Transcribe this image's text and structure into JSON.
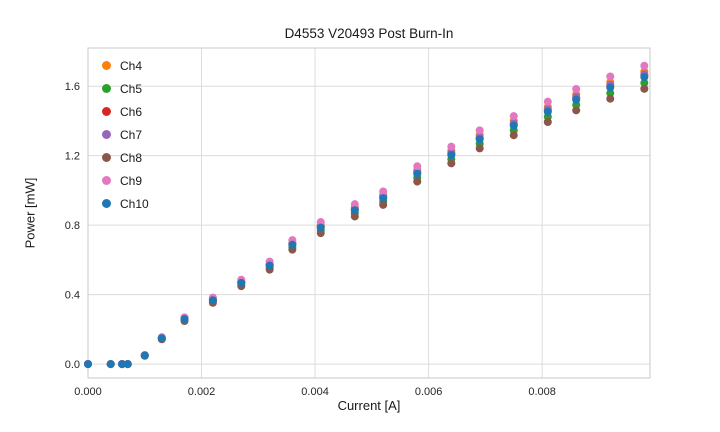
{
  "chart_data": {
    "type": "scatter",
    "title": "D4553 V20493 Post Burn-In",
    "xlabel": "Current [A]",
    "ylabel": "Power [mW]",
    "xlim": [
      0,
      0.0099
    ],
    "ylim": [
      -0.08,
      1.82
    ],
    "xticks": [
      0.0,
      0.002,
      0.004,
      0.006,
      0.008
    ],
    "xtick_labels": [
      "0.000",
      "0.002",
      "0.004",
      "0.006",
      "0.008"
    ],
    "yticks": [
      0.0,
      0.4,
      0.8,
      1.2,
      1.6
    ],
    "ytick_labels": [
      "0.0",
      "0.4",
      "0.8",
      "1.2",
      "1.6"
    ],
    "grid": true,
    "legend_position": "upper left",
    "x": [
      0.0,
      0.0004,
      0.0006,
      0.0007,
      0.001,
      0.0013,
      0.0017,
      0.0022,
      0.0027,
      0.0032,
      0.0036,
      0.0041,
      0.0047,
      0.0052,
      0.0058,
      0.0064,
      0.0069,
      0.0075,
      0.0081,
      0.0086,
      0.0092,
      0.0098
    ],
    "series": [
      {
        "name": "Ch4",
        "color": "#ff7f0e",
        "values": [
          0,
          0,
          0,
          0,
          0.051,
          0.152,
          0.264,
          0.376,
          0.477,
          0.579,
          0.7,
          0.802,
          0.903,
          0.974,
          1.117,
          1.228,
          1.32,
          1.401,
          1.482,
          1.553,
          1.624,
          1.685
        ]
      },
      {
        "name": "Ch5",
        "color": "#2ca02c",
        "values": [
          0,
          0,
          0,
          0,
          0.049,
          0.146,
          0.254,
          0.361,
          0.458,
          0.556,
          0.673,
          0.77,
          0.868,
          0.936,
          1.073,
          1.18,
          1.268,
          1.346,
          1.424,
          1.492,
          1.56,
          1.619
        ]
      },
      {
        "name": "Ch6",
        "color": "#d62728",
        "values": [
          0,
          0,
          0,
          0,
          0.05,
          0.15,
          0.26,
          0.37,
          0.47,
          0.57,
          0.69,
          0.79,
          0.89,
          0.96,
          1.1,
          1.21,
          1.3,
          1.38,
          1.46,
          1.53,
          1.6,
          1.66
        ]
      },
      {
        "name": "Ch7",
        "color": "#9467bd",
        "values": [
          0,
          0,
          0,
          0,
          0.05,
          0.151,
          0.261,
          0.372,
          0.472,
          0.573,
          0.693,
          0.794,
          0.894,
          0.965,
          1.106,
          1.216,
          1.307,
          1.387,
          1.467,
          1.538,
          1.608,
          1.668
        ]
      },
      {
        "name": "Ch8",
        "color": "#8c564b",
        "values": [
          0,
          0,
          0,
          0,
          0.048,
          0.143,
          0.248,
          0.353,
          0.449,
          0.544,
          0.659,
          0.754,
          0.85,
          0.917,
          1.051,
          1.156,
          1.242,
          1.318,
          1.394,
          1.461,
          1.528,
          1.585
        ]
      },
      {
        "name": "Ch9",
        "color": "#e377c2",
        "values": [
          0,
          0,
          0,
          0,
          0.052,
          0.155,
          0.269,
          0.383,
          0.486,
          0.59,
          0.714,
          0.818,
          0.921,
          0.994,
          1.139,
          1.252,
          1.346,
          1.428,
          1.511,
          1.584,
          1.656,
          1.718
        ]
      },
      {
        "name": "Ch10",
        "color": "#1f77b4",
        "values": [
          0,
          0,
          0,
          0,
          0.05,
          0.149,
          0.259,
          0.368,
          0.468,
          0.567,
          0.687,
          0.786,
          0.886,
          0.955,
          1.095,
          1.204,
          1.294,
          1.373,
          1.453,
          1.522,
          1.592,
          1.652
        ]
      }
    ]
  }
}
